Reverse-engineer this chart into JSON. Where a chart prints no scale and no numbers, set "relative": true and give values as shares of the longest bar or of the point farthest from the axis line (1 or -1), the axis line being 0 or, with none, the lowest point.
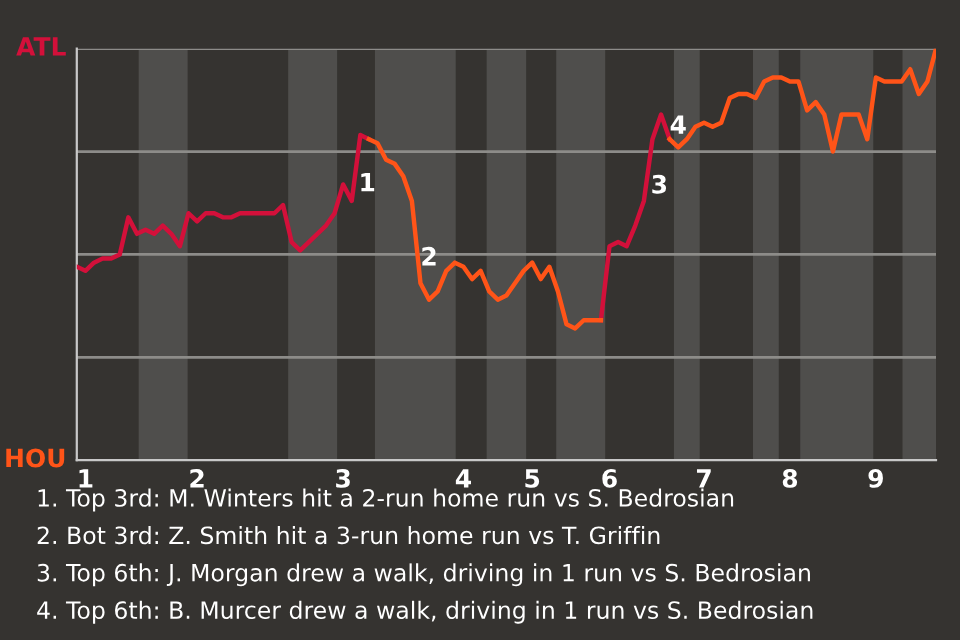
{
  "chart_data": {
    "type": "line",
    "relative": true,
    "categories": [
      null,
      "1",
      null,
      null,
      null,
      null,
      null,
      null,
      null,
      null,
      null,
      null,
      null,
      null,
      "2",
      null,
      null,
      null,
      null,
      null,
      null,
      null,
      null,
      null,
      null,
      null,
      null,
      null,
      null,
      null,
      null,
      "3",
      null,
      null,
      null,
      null,
      null,
      null,
      null,
      null,
      null,
      null,
      null,
      null,
      null,
      "4",
      null,
      null,
      null,
      null,
      null,
      null,
      null,
      "5",
      null,
      null,
      null,
      null,
      null,
      null,
      null,
      null,
      "6",
      null,
      null,
      null,
      null,
      null,
      null,
      null,
      null,
      null,
      null,
      "7",
      null,
      null,
      null,
      null,
      null,
      null,
      null,
      null,
      null,
      "8",
      null,
      null,
      null,
      null,
      null,
      null,
      null,
      null,
      null,
      "9",
      null,
      null,
      null,
      null,
      null,
      null,
      null
    ],
    "grid": "y",
    "legend": false,
    "marker": "none",
    "line_style": "solid",
    "series": [
      {
        "color": "#d3103a",
        "values": [
          0.47,
          0.46,
          0.48,
          0.49,
          0.49,
          0.5,
          0.59,
          0.55,
          0.56,
          0.55,
          0.57,
          0.55,
          0.52,
          0.6,
          0.58,
          0.6,
          0.6,
          0.59,
          0.59,
          0.6,
          0.6,
          0.6,
          0.6,
          0.6,
          0.62,
          0.53,
          0.51,
          0.53,
          0.55,
          0.57,
          0.6,
          0.67,
          0.63,
          0.79,
          0.78,
          null,
          null,
          null,
          null,
          null,
          null,
          null,
          null,
          null,
          null,
          null,
          null,
          null,
          null,
          null,
          null,
          null,
          null,
          null,
          null,
          null,
          null,
          null,
          null,
          null,
          null,
          0.34,
          0.52,
          0.53,
          0.52,
          0.57,
          0.63,
          0.78,
          0.84,
          0.78,
          null,
          null,
          null,
          null,
          null,
          null,
          null,
          null,
          null,
          null,
          null,
          null,
          null,
          null,
          null,
          null,
          null,
          null,
          null,
          null,
          null,
          null,
          null,
          null,
          null,
          null,
          null,
          null,
          null,
          null,
          null
        ]
      },
      {
        "color": "#ff5418",
        "values": [
          null,
          null,
          null,
          null,
          null,
          null,
          null,
          null,
          null,
          null,
          null,
          null,
          null,
          null,
          null,
          null,
          null,
          null,
          null,
          null,
          null,
          null,
          null,
          null,
          null,
          null,
          null,
          null,
          null,
          null,
          null,
          null,
          null,
          null,
          0.78,
          0.77,
          0.73,
          0.72,
          0.69,
          0.63,
          0.43,
          0.39,
          0.41,
          0.46,
          0.48,
          0.47,
          0.44,
          0.46,
          0.41,
          0.39,
          0.4,
          0.43,
          0.46,
          0.48,
          0.44,
          0.47,
          0.41,
          0.33,
          0.32,
          0.34,
          0.34,
          0.34,
          null,
          null,
          null,
          null,
          null,
          null,
          null,
          0.78,
          0.76,
          0.78,
          0.81,
          0.82,
          0.81,
          0.82,
          0.88,
          0.89,
          0.89,
          0.88,
          0.92,
          0.93,
          0.93,
          0.92,
          0.92,
          0.85,
          0.87,
          0.84,
          0.75,
          0.84,
          0.84,
          0.84,
          0.78,
          0.93,
          0.92,
          0.92,
          0.92,
          0.95,
          0.89,
          0.92,
          1
        ]
      }
    ],
    "annotations": [
      "ATL",
      "HOU",
      "1",
      "2",
      "3",
      "4",
      "1. Top 3rd: M. Winters hit a 2-run home run vs S. Bedrosian",
      "2. Bot 3rd: Z. Smith hit a 3-run home run vs T. Griffin",
      "3. Top 6th: J. Morgan drew a walk, driving in 1 run vs S. Bedrosian",
      "4. Top 6th: B. Murcer drew a walk, driving in 1 run vs S. Bedrosian"
    ]
  }
}
